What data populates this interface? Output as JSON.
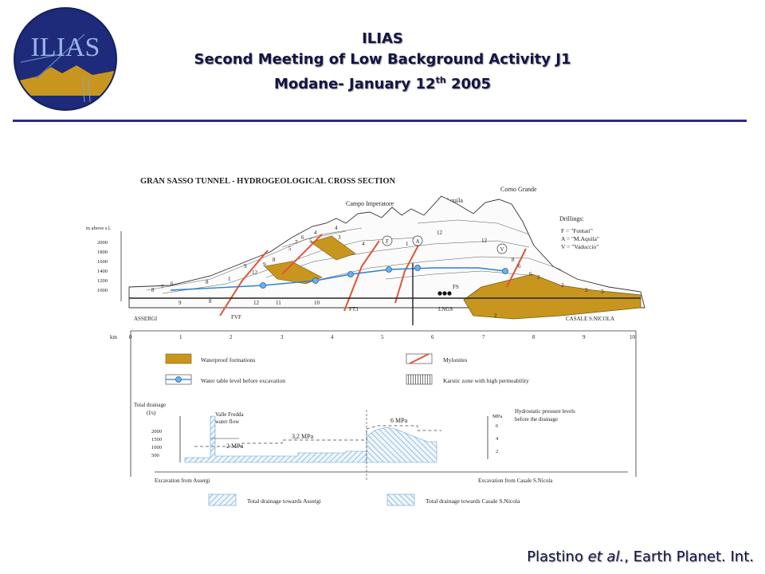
{
  "logo": {
    "text": "ILIAS"
  },
  "header": {
    "line1": "ILIAS",
    "line2": "Second Meeting of Low Background Activity J1",
    "line3_main": "Modane- January 12",
    "line3_sup": "th",
    "line3_end": " 2005"
  },
  "figure": {
    "title": "GRAN SASSO TUNNEL - HYDROGEOLOGICAL CROSS SECTION",
    "peaks": {
      "campo": "Campo Imperatore",
      "aquila": "M.Aquila",
      "corno": "Corno Grande"
    },
    "drillings": {
      "title": "Drillings:",
      "items": [
        "F = \"Fontari\"",
        "A = \"M.Aquila\"",
        "V = \"Vaduccio\""
      ]
    },
    "elevation_axis": {
      "label": "m above s.l.",
      "ticks": [
        "2000",
        "1800",
        "1600",
        "1400",
        "1200",
        "1000"
      ]
    },
    "places": {
      "left": "ASSERGI",
      "right": "CASALE S.NICOLA"
    },
    "tunnel_labels": {
      "fvf": "FVF",
      "ft3": "FT3",
      "lngs": "LNGS",
      "fs": "FS"
    },
    "section_numbers": [
      "8",
      "7",
      "6",
      "8",
      "1",
      "9",
      "12",
      "8",
      "9",
      "5",
      "7",
      "6",
      "5",
      "4",
      "3",
      "4",
      "12",
      "1",
      "12",
      "8",
      "6",
      "3",
      "2",
      "6",
      "2",
      "3",
      "4",
      "12",
      "11",
      "10",
      "9",
      "8",
      "2"
    ],
    "drill_marks": [
      "F",
      "A",
      "V"
    ],
    "km_axis": {
      "label": "km",
      "ticks": [
        "0",
        "1",
        "2",
        "3",
        "4",
        "5",
        "6",
        "7",
        "8",
        "9",
        "10"
      ]
    },
    "legend": {
      "waterproof": "Waterproof  formations",
      "water_table": "Water table level before excavation",
      "mylonites": "Mylonites",
      "karstic": "Karstic zone with high permeability"
    },
    "drainage": {
      "ylabel_line1": "Total drainage",
      "ylabel_line2": "(l/s)",
      "left_ticks": [
        "2000",
        "1500",
        "1000",
        "500"
      ],
      "right_axis_label": "MPa",
      "right_ticks": [
        "6",
        "4",
        "2"
      ],
      "hydro_line1": "Hydrostatic pressure levels",
      "hydro_line2": "before the drainage",
      "valle_line1": "Valle Fredda",
      "valle_line2": "water flow",
      "p2": "2 MPa",
      "p32": "3,2 MPa",
      "p6": "6 MPa",
      "exc_left": "Excavation from Assergi",
      "exc_right": "Excavation from Casale S.Nicola",
      "legend_assergi": "Total drainage towards Assergi",
      "legend_casale": "Total drainage towards Casale S.Nicola"
    }
  },
  "citation": {
    "author": "Plastino ",
    "etal": "et al.",
    "rest": ", Earth Planet. Int."
  },
  "colors": {
    "header_text": "#141446",
    "rule": "#2b2b8c",
    "waterproof": "#c8961e",
    "fault": "#e0553a",
    "water_table": "#2c7fd0"
  }
}
